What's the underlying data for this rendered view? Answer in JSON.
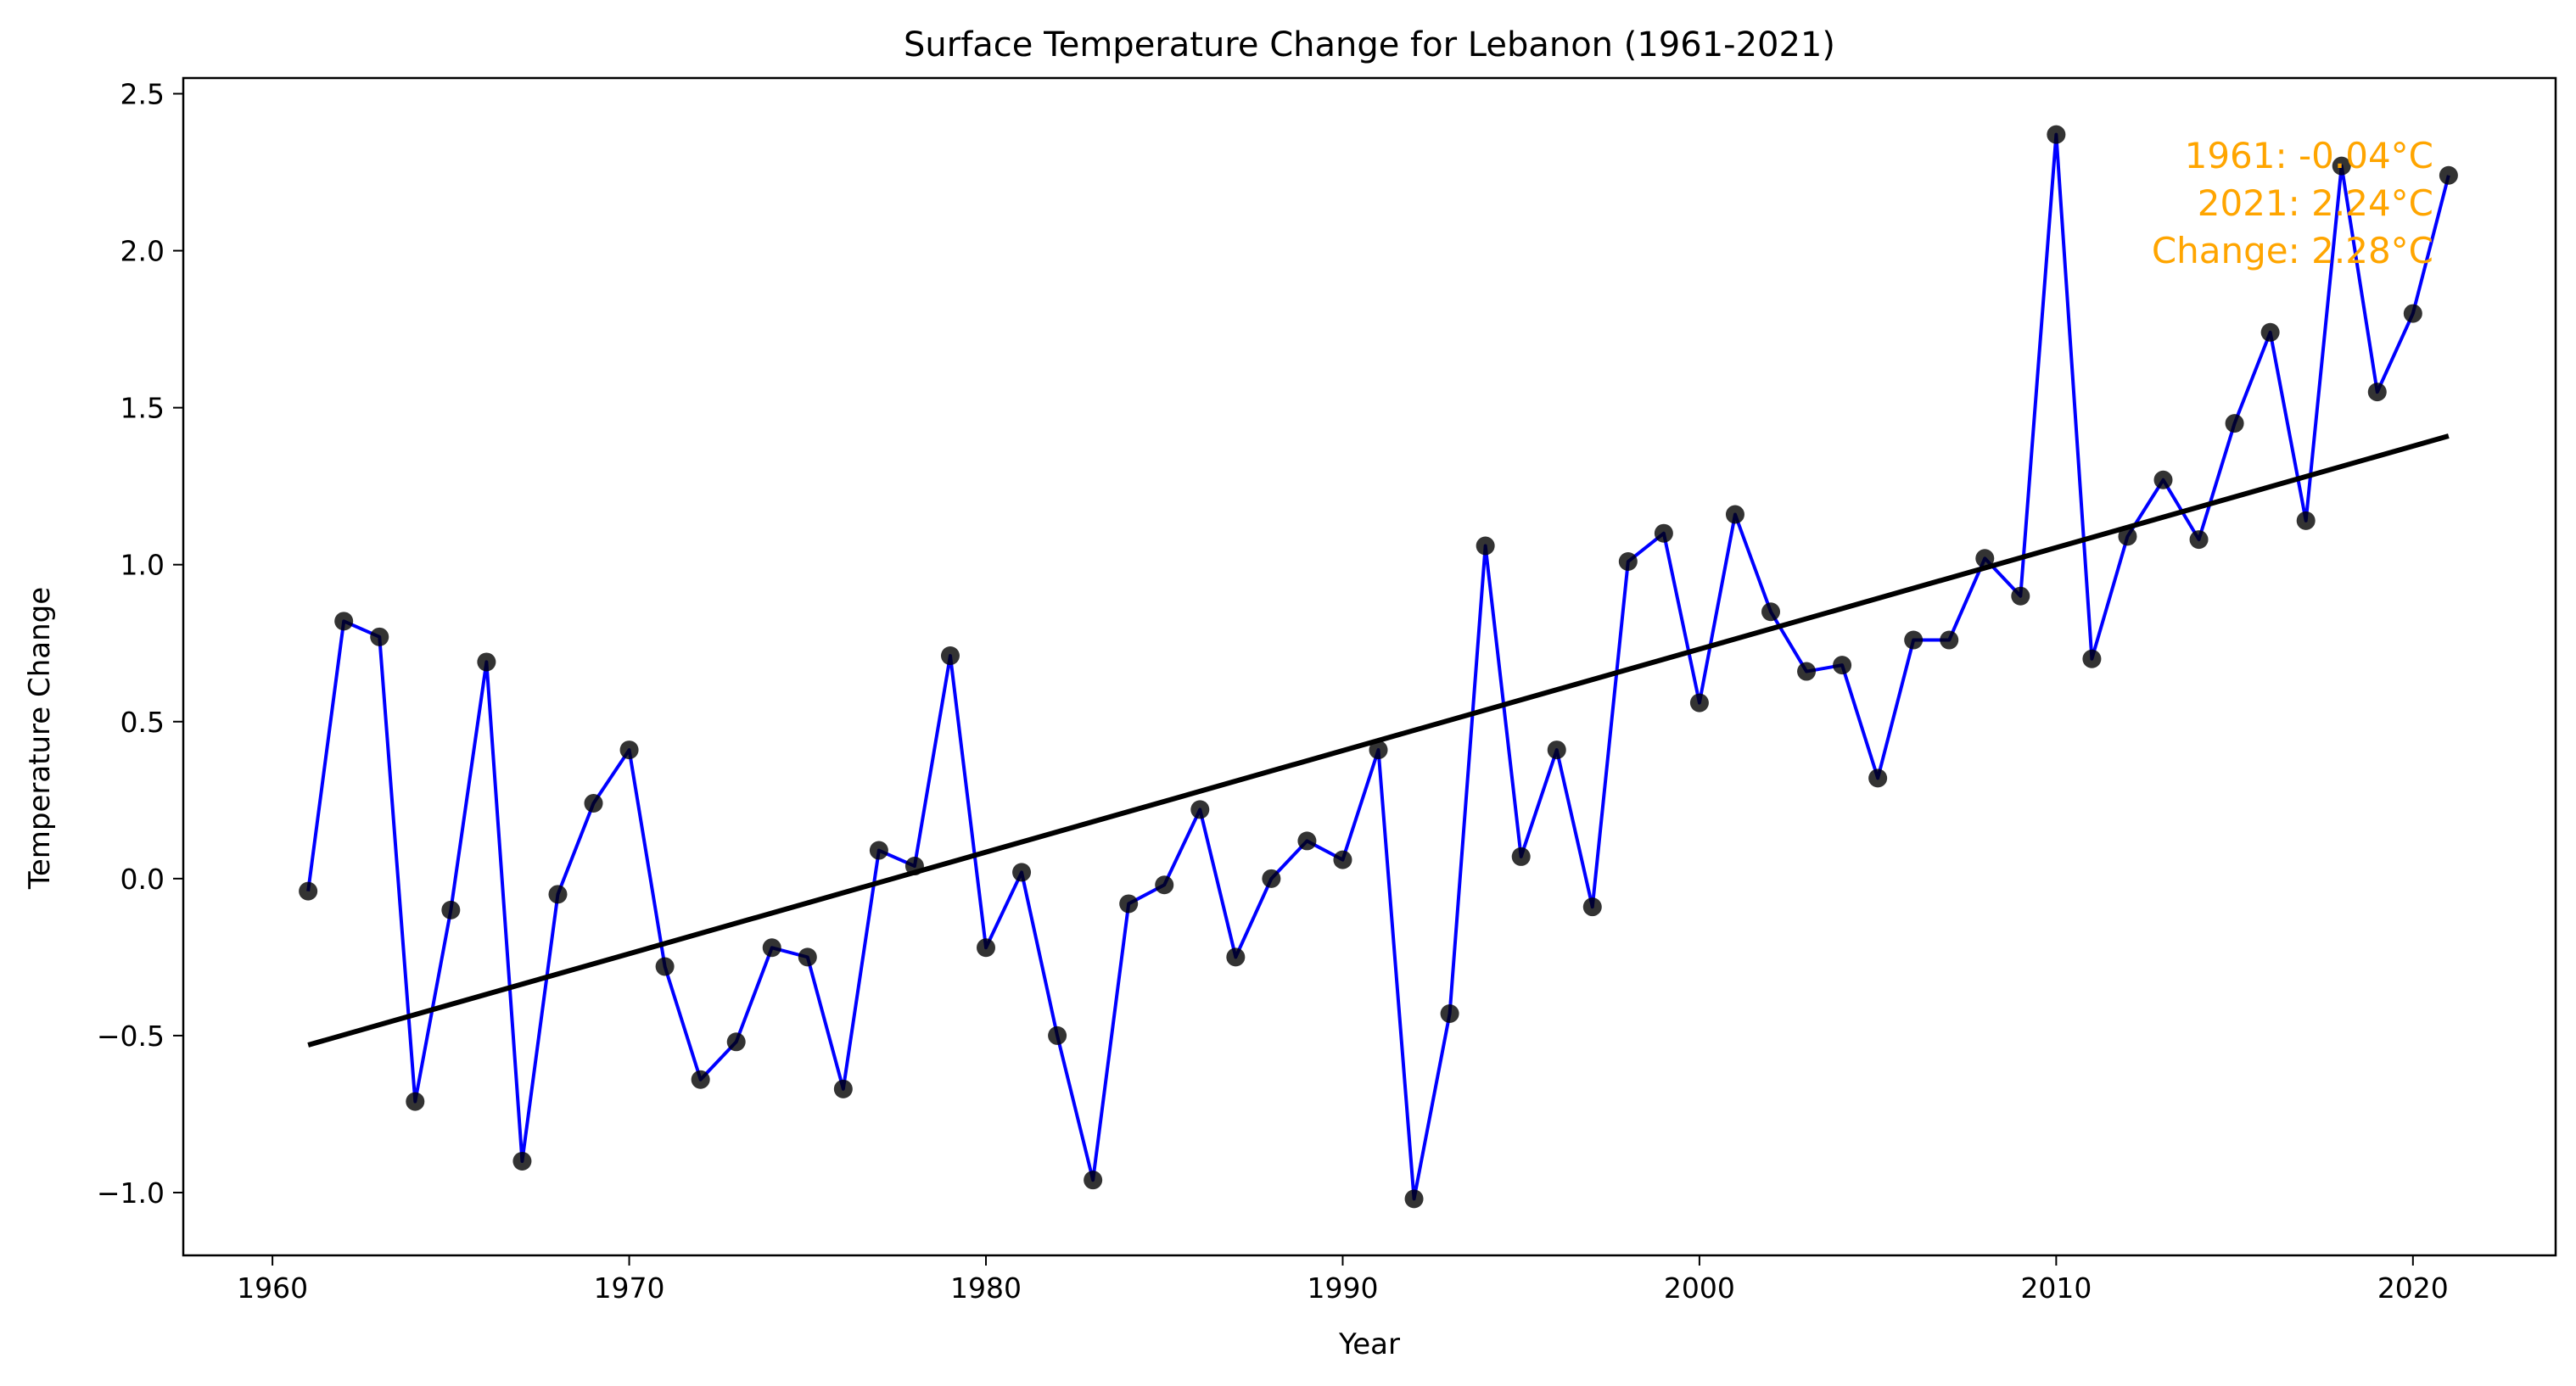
{
  "chart_data": {
    "type": "line",
    "title": "Surface Temperature Change for Lebanon (1961-2021)",
    "xlabel": "Year",
    "ylabel": "Temperature Change",
    "xlim": [
      1957.5,
      2024.0
    ],
    "ylim": [
      -1.2,
      2.55
    ],
    "xticks": [
      1960,
      1970,
      1980,
      1990,
      2000,
      2010,
      2020
    ],
    "xtick_labels": [
      "1960",
      "1970",
      "1980",
      "1990",
      "2000",
      "2010",
      "2020"
    ],
    "yticks": [
      -1.0,
      -0.5,
      0.0,
      0.5,
      1.0,
      1.5,
      2.0,
      2.5
    ],
    "ytick_labels": [
      "−1.0",
      "−0.5",
      "0.0",
      "0.5",
      "1.0",
      "1.5",
      "2.0",
      "2.5"
    ],
    "grid": false,
    "legend": "none",
    "colors": {
      "line": "#0000FF",
      "markers": "#000000",
      "trend": "#000000",
      "annotation": "#FFA500"
    },
    "series": [
      {
        "x": [
          1961,
          1962,
          1963,
          1964,
          1965,
          1966,
          1967,
          1968,
          1969,
          1970,
          1971,
          1972,
          1973,
          1974,
          1975,
          1976,
          1977,
          1978,
          1979,
          1980,
          1981,
          1982,
          1983,
          1984,
          1985,
          1986,
          1987,
          1988,
          1989,
          1990,
          1991,
          1992,
          1993,
          1994,
          1995,
          1996,
          1997,
          1998,
          1999,
          2000,
          2001,
          2002,
          2003,
          2004,
          2005,
          2006,
          2007,
          2008,
          2009,
          2010,
          2011,
          2012,
          2013,
          2014,
          2015,
          2016,
          2017,
          2018,
          2019,
          2020,
          2021
        ],
        "y": [
          -0.04,
          0.82,
          0.77,
          -0.71,
          -0.1,
          0.69,
          -0.9,
          -0.05,
          0.24,
          0.41,
          -0.28,
          -0.64,
          -0.52,
          -0.22,
          -0.25,
          -0.67,
          0.09,
          0.04,
          0.71,
          -0.22,
          0.02,
          -0.5,
          -0.96,
          -0.08,
          -0.02,
          0.22,
          -0.25,
          0.0,
          0.12,
          0.06,
          0.41,
          -1.02,
          -0.43,
          1.06,
          0.07,
          0.41,
          -0.09,
          1.01,
          1.1,
          0.56,
          1.16,
          0.85,
          0.66,
          0.68,
          0.32,
          0.76,
          0.76,
          1.02,
          0.9,
          2.37,
          0.7,
          1.09,
          1.27,
          1.08,
          1.45,
          1.74,
          1.14,
          2.27,
          1.55,
          1.8,
          2.24
        ]
      }
    ],
    "trend_line": {
      "x": [
        1961,
        2021
      ],
      "y": [
        -0.53,
        1.41
      ]
    },
    "annotation": [
      "1961: -0.04°C",
      "2021: 2.24°C",
      "Change: 2.28°C"
    ]
  }
}
